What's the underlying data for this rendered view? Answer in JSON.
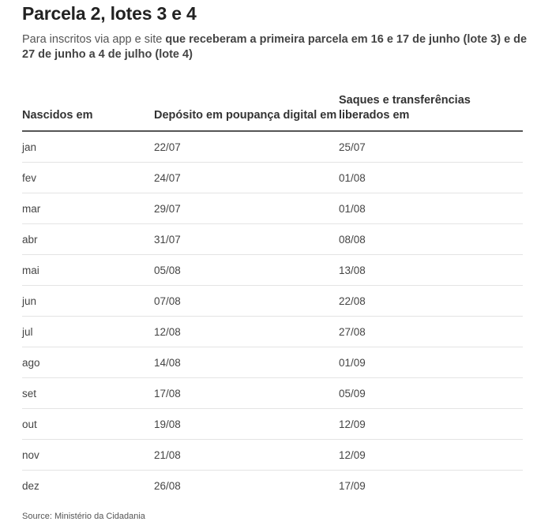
{
  "title": "Parcela 2, lotes 3 e 4",
  "subtitle": {
    "normal": "Para inscritos via app e site ",
    "bold": "que receberam a primeira parcela em 16 e 17 de junho (lote 3) e de 27 de junho a 4 de julho (lote 4)"
  },
  "source": "Source: Ministério da Cidadania",
  "chart_data": {
    "type": "table",
    "title": "Parcela 2, lotes 3 e 4",
    "columns": [
      "Nascidos em",
      "Depósito em poupança digital em",
      "Saques e transferências liberados em"
    ],
    "rows": [
      [
        "jan",
        "22/07",
        "25/07"
      ],
      [
        "fev",
        "24/07",
        "01/08"
      ],
      [
        "mar",
        "29/07",
        "01/08"
      ],
      [
        "abr",
        "31/07",
        "08/08"
      ],
      [
        "mai",
        "05/08",
        "13/08"
      ],
      [
        "jun",
        "07/08",
        "22/08"
      ],
      [
        "jul",
        "12/08",
        "27/08"
      ],
      [
        "ago",
        "14/08",
        "01/09"
      ],
      [
        "set",
        "17/08",
        "05/09"
      ],
      [
        "out",
        "19/08",
        "12/09"
      ],
      [
        "nov",
        "21/08",
        "12/09"
      ],
      [
        "dez",
        "26/08",
        "17/09"
      ]
    ]
  }
}
